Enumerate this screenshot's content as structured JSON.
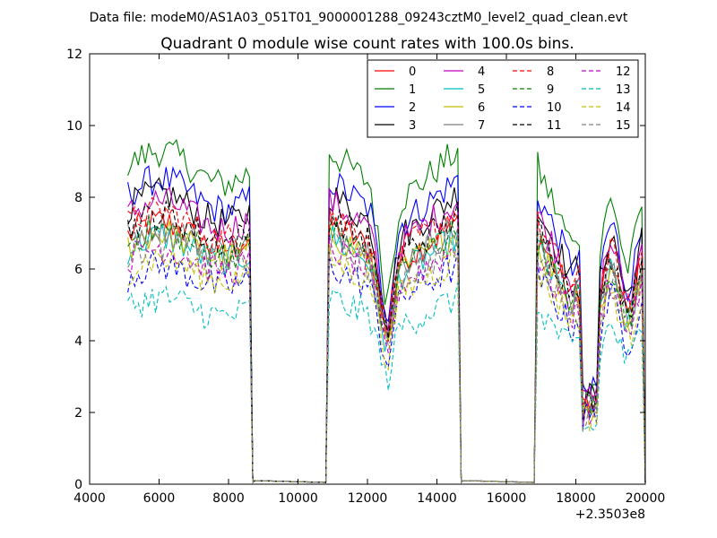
{
  "chart_data": {
    "type": "line",
    "suptitle": "Data file: modeM0/AS1A03_051T01_9000001288_09243cztM0_level2_quad_clean.evt",
    "title": "Quadrant 0 module wise count rates with 100.0s bins.",
    "xlabel": "",
    "ylabel": "",
    "x_offset_label": "+2.3503e8",
    "xlim": [
      4000,
      20000
    ],
    "ylim": [
      0,
      12
    ],
    "xticks": [
      4000,
      6000,
      8000,
      10000,
      12000,
      14000,
      16000,
      18000,
      20000
    ],
    "yticks": [
      0,
      2,
      4,
      6,
      8,
      10,
      12
    ],
    "grid": false,
    "legend_position": "top-right",
    "legend_columns": 4,
    "time_segments": [
      {
        "start": 5100,
        "end": 8600,
        "profile": "plateau"
      },
      {
        "start": 10900,
        "end": 14600,
        "profile": "dip"
      },
      {
        "start": 16900,
        "end": 19900,
        "profile": "saa"
      }
    ],
    "series": [
      {
        "name": "0",
        "color": "#ff0000",
        "dash": "solid",
        "level": 7.3
      },
      {
        "name": "1",
        "color": "#008000",
        "dash": "solid",
        "level": 9.3
      },
      {
        "name": "2",
        "color": "#0000ff",
        "dash": "solid",
        "level": 8.5
      },
      {
        "name": "3",
        "color": "#000000",
        "dash": "solid",
        "level": 8.1
      },
      {
        "name": "4",
        "color": "#bf00bf",
        "dash": "solid",
        "level": 7.9
      },
      {
        "name": "5",
        "color": "#00bfbf",
        "dash": "solid",
        "level": 6.9
      },
      {
        "name": "6",
        "color": "#bfbf00",
        "dash": "solid",
        "level": 7.0
      },
      {
        "name": "7",
        "color": "#808080",
        "dash": "solid",
        "level": 7.2
      },
      {
        "name": "8",
        "color": "#ff0000",
        "dash": "dashed",
        "level": 7.6
      },
      {
        "name": "9",
        "color": "#008000",
        "dash": "dashed",
        "level": 7.1
      },
      {
        "name": "10",
        "color": "#0000ff",
        "dash": "dashed",
        "level": 6.1
      },
      {
        "name": "11",
        "color": "#000000",
        "dash": "dashed",
        "level": 7.5
      },
      {
        "name": "12",
        "color": "#bf00bf",
        "dash": "dashed",
        "level": 6.6
      },
      {
        "name": "13",
        "color": "#00bfbf",
        "dash": "dashed",
        "level": 5.2
      },
      {
        "name": "14",
        "color": "#bfbf00",
        "dash": "dashed",
        "level": 6.3
      },
      {
        "name": "15",
        "color": "#808080",
        "dash": "dashed",
        "level": 6.7
      }
    ]
  }
}
